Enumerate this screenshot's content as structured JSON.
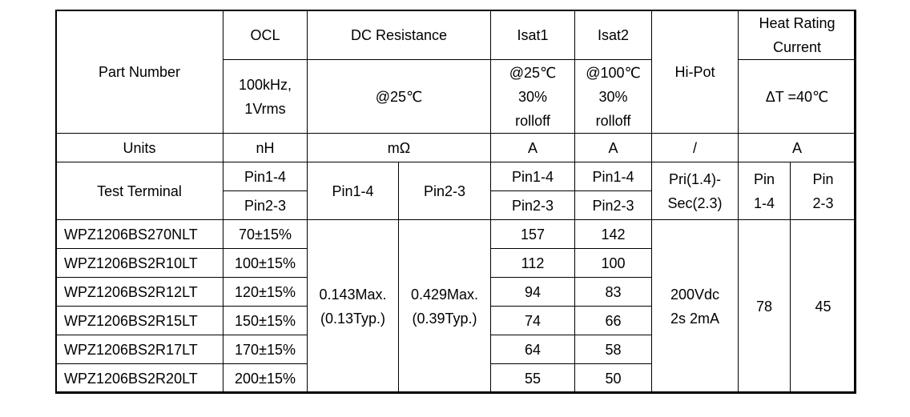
{
  "header": {
    "part_number": "Part Number",
    "ocl": "OCL",
    "dc_resistance": "DC Resistance",
    "isat1": "Isat1",
    "isat2": "Isat2",
    "hipot": "Hi-Pot",
    "heat_rating": [
      "Heat Rating",
      "Current"
    ]
  },
  "conditions": {
    "ocl": [
      "100kHz,",
      "1Vrms"
    ],
    "dcr": "@25℃",
    "isat1": [
      "@25℃",
      "30%",
      "rolloff"
    ],
    "isat2": [
      "@100℃",
      "30%",
      "rolloff"
    ],
    "heat": "ΔT =40℃"
  },
  "units": {
    "label": "Units",
    "ocl": "nH",
    "dcr": "mΩ",
    "isat1": "A",
    "isat2": "A",
    "hipot": "/",
    "heat": "A"
  },
  "terminal": {
    "label": "Test Terminal",
    "ocl": [
      "Pin1-4",
      "Pin2-3"
    ],
    "dcr1": "Pin1-4",
    "dcr2": "Pin2-3",
    "isat1": [
      "Pin1-4",
      "Pin2-3"
    ],
    "isat2": [
      "Pin1-4",
      "Pin2-3"
    ],
    "hipot": [
      "Pri(1.4)-",
      "Sec(2.3)"
    ],
    "heat1": [
      "Pin",
      "1-4"
    ],
    "heat2": [
      "Pin",
      "2-3"
    ]
  },
  "rows": [
    {
      "part": "WPZ1206BS270NLT",
      "ocl": "70±15%",
      "isat1": "157",
      "isat2": "142"
    },
    {
      "part": "WPZ1206BS2R10LT",
      "ocl": "100±15%",
      "isat1": "112",
      "isat2": "100"
    },
    {
      "part": "WPZ1206BS2R12LT",
      "ocl": "120±15%",
      "isat1": "94",
      "isat2": "83"
    },
    {
      "part": "WPZ1206BS2R15LT",
      "ocl": "150±15%",
      "isat1": "74",
      "isat2": "66"
    },
    {
      "part": "WPZ1206BS2R17LT",
      "ocl": "170±15%",
      "isat1": "64",
      "isat2": "58"
    },
    {
      "part": "WPZ1206BS2R20LT",
      "ocl": "200±15%",
      "isat1": "55",
      "isat2": "50"
    }
  ],
  "shared": {
    "dcr1": [
      "0.143Max.",
      "(0.13Typ.)"
    ],
    "dcr2": [
      "0.429Max.",
      "(0.39Typ.)"
    ],
    "hipot": [
      "200Vdc",
      "2s 2mA"
    ],
    "heat1": "78",
    "heat2": "45"
  }
}
